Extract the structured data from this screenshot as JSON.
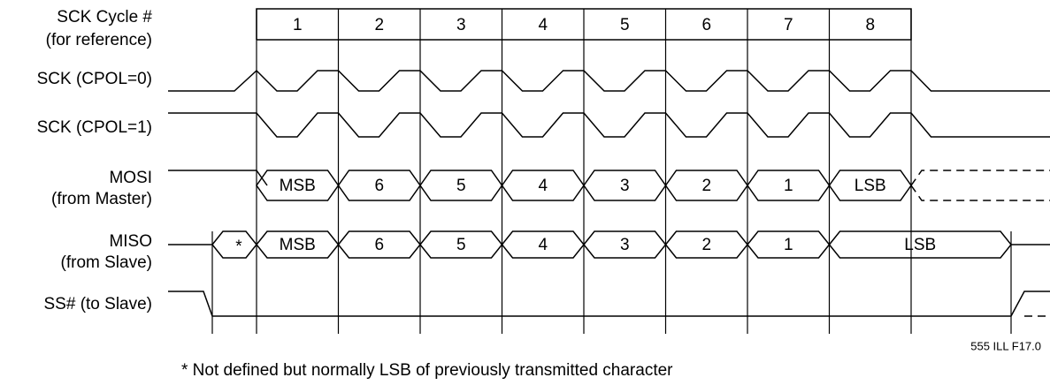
{
  "signals": {
    "cycle": [
      "SCK Cycle #",
      "(for reference)"
    ],
    "sck0": "SCK (CPOL=0)",
    "sck1": "SCK (CPOL=1)",
    "mosi": [
      "MOSI",
      "(from Master)"
    ],
    "miso": [
      "MISO",
      "(from Slave)"
    ],
    "ss": "SS# (to Slave)"
  },
  "cycles": [
    "1",
    "2",
    "3",
    "4",
    "5",
    "6",
    "7",
    "8"
  ],
  "mosi_bits": [
    "MSB",
    "6",
    "5",
    "4",
    "3",
    "2",
    "1",
    "LSB"
  ],
  "miso_bits": [
    "MSB",
    "6",
    "5",
    "4",
    "3",
    "2",
    "1",
    "LSB"
  ],
  "miso_undefined": "*",
  "figure_id": "555 ILL F17.0",
  "note": "* Not defined but normally LSB of previously transmitted character"
}
